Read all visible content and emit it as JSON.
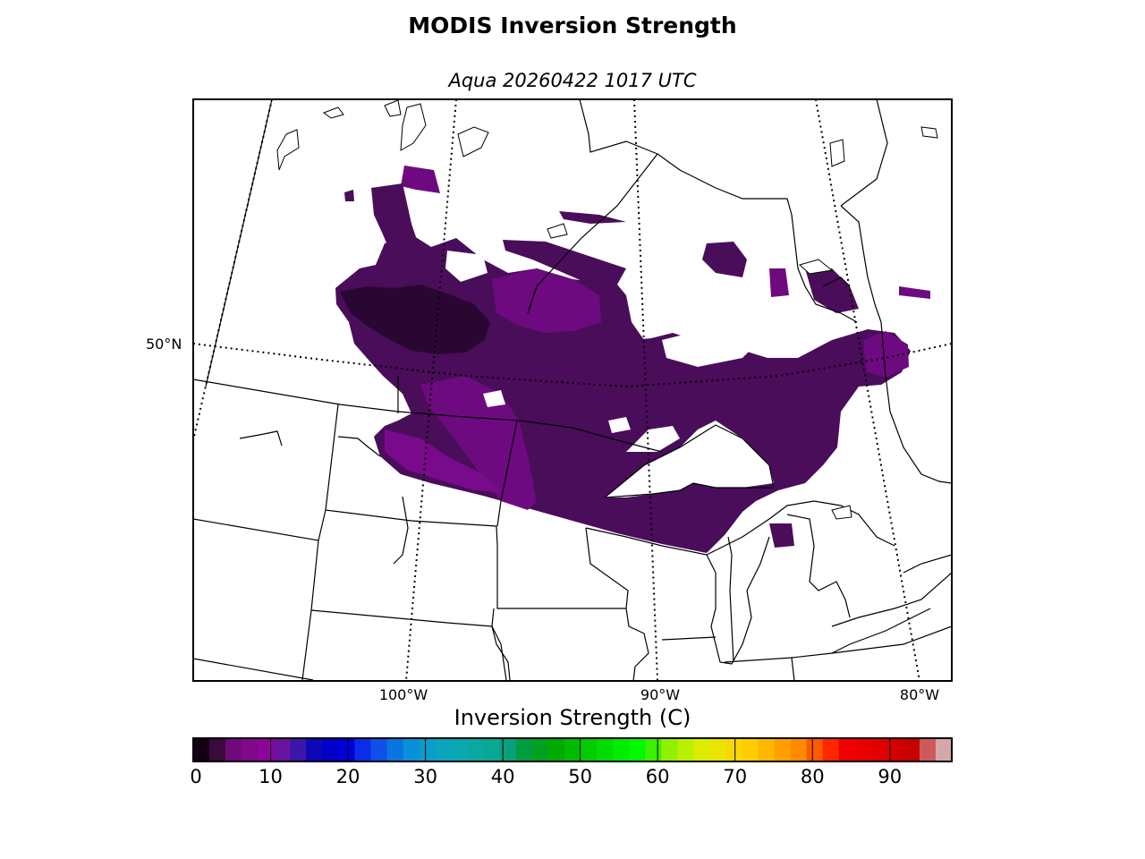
{
  "title": "MODIS Inversion Strength",
  "subtitle": "Aqua 20260422 1017 UTC",
  "map": {
    "lat_labels": [
      "50°N"
    ],
    "lon_labels": [
      "100°W",
      "90°W",
      "80°W"
    ]
  },
  "colorbar": {
    "label": "Inversion Strength (C)",
    "min": 0,
    "max": 98,
    "ticks": [
      "0",
      "10",
      "20",
      "30",
      "40",
      "50",
      "60",
      "70",
      "80",
      "90"
    ],
    "colors": [
      "#140014",
      "#3a0a3c",
      "#6f0a7a",
      "#80088a",
      "#8a0598",
      "#6a12a0",
      "#3a17a8",
      "#0d07b5",
      "#0000c8",
      "#0000d8",
      "#0b2ce8",
      "#0f50e8",
      "#0a74e0",
      "#0890d8",
      "#0a9ccc",
      "#0aa4bc",
      "#0aa8b0",
      "#0aa8a0",
      "#08a894",
      "#07a07a",
      "#009c40",
      "#00a020",
      "#00aa00",
      "#00bc00",
      "#00cc00",
      "#00dc00",
      "#00ec00",
      "#00f800",
      "#3cf000",
      "#90f000",
      "#b8f000",
      "#dcec00",
      "#eae400",
      "#f8d800",
      "#ffcc00",
      "#ffb800",
      "#ffa000",
      "#ff8c00",
      "#ff5a00",
      "#ff2600",
      "#f00000",
      "#e80000",
      "#e00000",
      "#d40000",
      "#c80000",
      "#cc5a5a",
      "#d4a8a8"
    ]
  },
  "legend_colors": {
    "cloud_low": "#3e0a4a",
    "cloud_high": "#7b0a8e",
    "land": "#ffffff"
  }
}
